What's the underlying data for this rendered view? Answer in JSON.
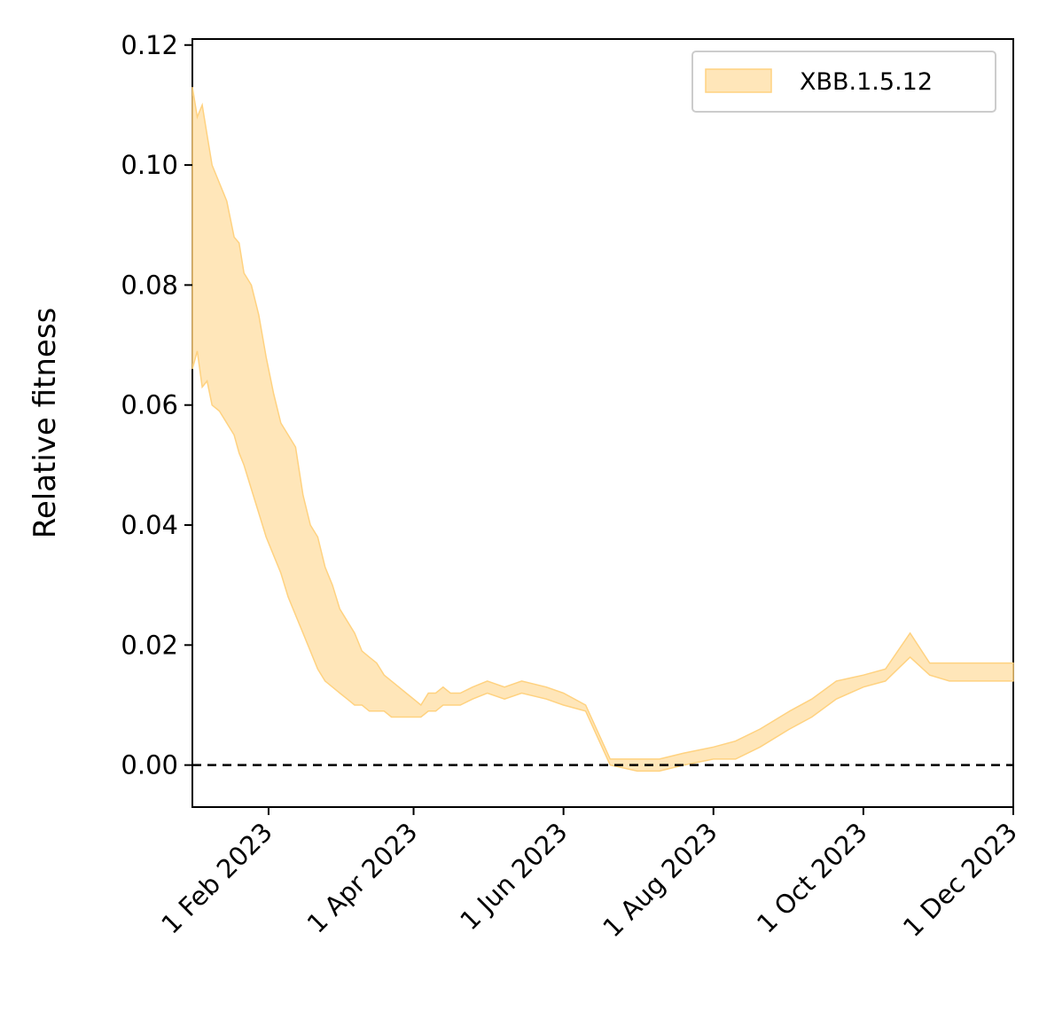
{
  "chart_data": {
    "type": "area",
    "xlabel": "",
    "ylabel": "Relative fitness",
    "xlim": [
      "2023-01-01",
      "2023-12-01"
    ],
    "ylim": [
      -0.007,
      0.121
    ],
    "x_ticks": [
      "2023-02-01",
      "2023-04-01",
      "2023-06-01",
      "2023-08-01",
      "2023-10-01",
      "2023-12-01"
    ],
    "x_tick_labels": [
      "1 Feb 2023",
      "1 Apr 2023",
      "1 Jun 2023",
      "1 Aug 2023",
      "1 Oct 2023",
      "1 Dec 2023"
    ],
    "y_ticks": [
      0.0,
      0.02,
      0.04,
      0.06,
      0.08,
      0.1,
      0.12
    ],
    "y_tick_labels": [
      "0.00",
      "0.02",
      "0.04",
      "0.06",
      "0.08",
      "0.10",
      "0.12"
    ],
    "reference_line": {
      "y": 0.0,
      "style": "dashed",
      "color": "#000000"
    },
    "legend": {
      "position": "top-right"
    },
    "series": [
      {
        "name": "XBB.1.5.12",
        "color": "#ffd280",
        "x": [
          "2023-01-01",
          "2023-01-03",
          "2023-01-05",
          "2023-01-07",
          "2023-01-09",
          "2023-01-12",
          "2023-01-15",
          "2023-01-18",
          "2023-01-20",
          "2023-01-22",
          "2023-01-25",
          "2023-01-28",
          "2023-01-31",
          "2023-02-03",
          "2023-02-06",
          "2023-02-09",
          "2023-02-12",
          "2023-02-15",
          "2023-02-18",
          "2023-02-21",
          "2023-02-24",
          "2023-02-27",
          "2023-03-02",
          "2023-03-05",
          "2023-03-08",
          "2023-03-11",
          "2023-03-14",
          "2023-03-17",
          "2023-03-20",
          "2023-03-23",
          "2023-03-26",
          "2023-03-29",
          "2023-04-01",
          "2023-04-04",
          "2023-04-07",
          "2023-04-10",
          "2023-04-13",
          "2023-04-16",
          "2023-04-20",
          "2023-04-25",
          "2023-05-01",
          "2023-05-08",
          "2023-05-15",
          "2023-05-25",
          "2023-06-01",
          "2023-06-10",
          "2023-06-20",
          "2023-07-01",
          "2023-07-10",
          "2023-07-20",
          "2023-08-01",
          "2023-08-10",
          "2023-08-20",
          "2023-09-01",
          "2023-09-10",
          "2023-09-20",
          "2023-10-01",
          "2023-10-10",
          "2023-10-20",
          "2023-10-28",
          "2023-11-05",
          "2023-11-15",
          "2023-11-25",
          "2023-11-28",
          "2023-12-01"
        ],
        "upper": [
          0.113,
          0.108,
          0.11,
          0.105,
          0.1,
          0.097,
          0.094,
          0.088,
          0.087,
          0.082,
          0.08,
          0.075,
          0.068,
          0.062,
          0.057,
          0.055,
          0.053,
          0.045,
          0.04,
          0.038,
          0.033,
          0.03,
          0.026,
          0.024,
          0.022,
          0.019,
          0.018,
          0.017,
          0.015,
          0.014,
          0.013,
          0.012,
          0.011,
          0.01,
          0.012,
          0.012,
          0.013,
          0.012,
          0.012,
          0.013,
          0.014,
          0.013,
          0.014,
          0.013,
          0.012,
          0.01,
          0.001,
          0.001,
          0.001,
          0.002,
          0.003,
          0.004,
          0.006,
          0.009,
          0.011,
          0.014,
          0.015,
          0.016,
          0.022,
          0.017,
          0.017,
          0.017,
          0.017,
          0.017,
          0.017
        ],
        "lower": [
          0.066,
          0.069,
          0.063,
          0.064,
          0.06,
          0.059,
          0.057,
          0.055,
          0.052,
          0.05,
          0.046,
          0.042,
          0.038,
          0.035,
          0.032,
          0.028,
          0.025,
          0.022,
          0.019,
          0.016,
          0.014,
          0.013,
          0.012,
          0.011,
          0.01,
          0.01,
          0.009,
          0.009,
          0.009,
          0.008,
          0.008,
          0.008,
          0.008,
          0.008,
          0.009,
          0.009,
          0.01,
          0.01,
          0.01,
          0.011,
          0.012,
          0.011,
          0.012,
          0.011,
          0.01,
          0.009,
          0.0,
          -0.001,
          -0.001,
          0.0,
          0.001,
          0.001,
          0.003,
          0.006,
          0.008,
          0.011,
          0.013,
          0.014,
          0.018,
          0.015,
          0.014,
          0.014,
          0.014,
          0.014,
          0.014
        ]
      }
    ]
  }
}
